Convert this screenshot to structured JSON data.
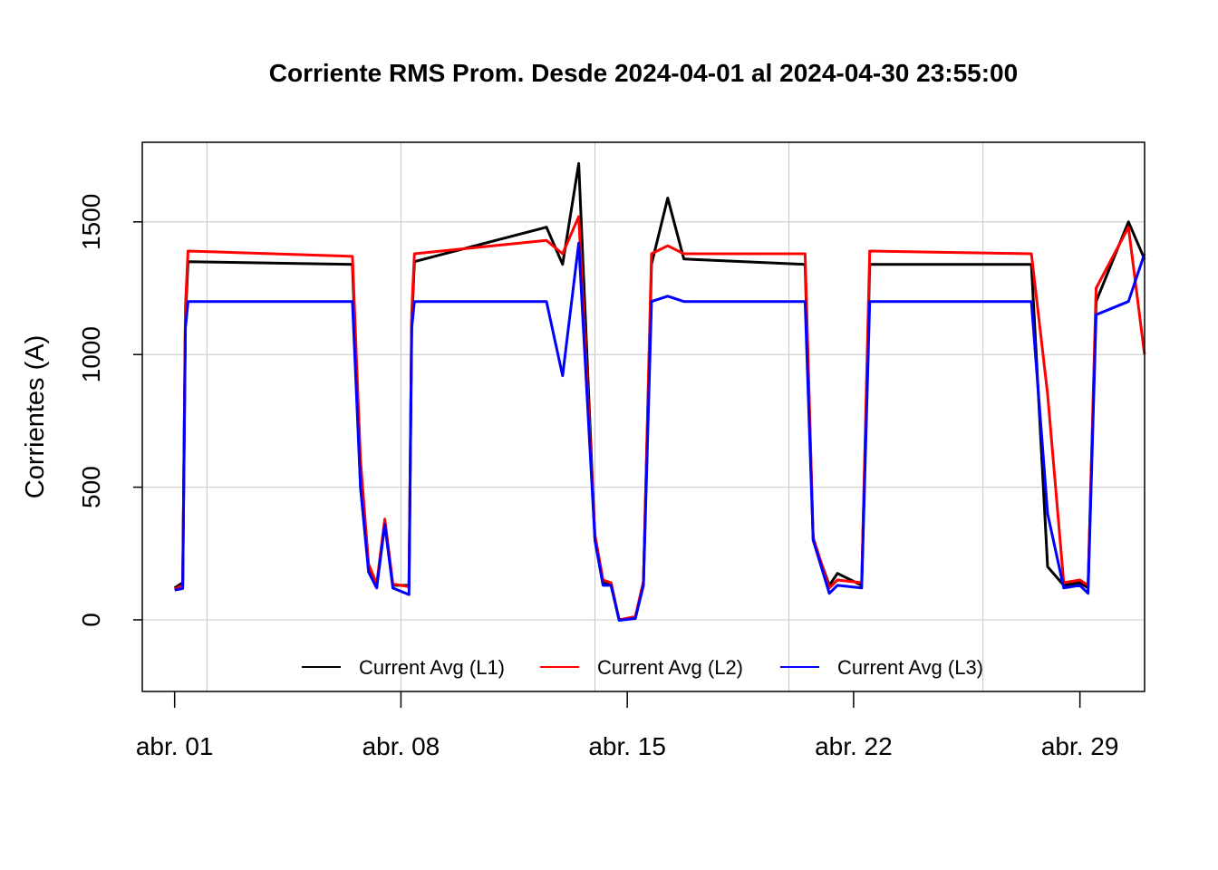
{
  "chart_data": {
    "type": "line",
    "title": "Corriente RMS Prom. Desde  2024-04-01  al  2024-04-30 23:55:00",
    "xlabel": "",
    "ylabel": "Corrientes (A)",
    "x_range": [
      "2024-03-31T00:00:00",
      "2024-05-01T00:00:00"
    ],
    "ylim": [
      -270,
      1800
    ],
    "y_ticks": [
      0,
      500,
      1000,
      1500
    ],
    "x_ticks": [
      {
        "date": "2024-04-01",
        "label": "abr. 01"
      },
      {
        "date": "2024-04-08",
        "label": "abr. 08"
      },
      {
        "date": "2024-04-15",
        "label": "abr. 15"
      },
      {
        "date": "2024-04-22",
        "label": "abr. 22"
      },
      {
        "date": "2024-04-29",
        "label": "abr. 29"
      }
    ],
    "x_grid": [
      "2024-04-02",
      "2024-04-08",
      "2024-04-14",
      "2024-04-20",
      "2024-04-26"
    ],
    "grid": true,
    "legend_position": "bottom",
    "series": [
      {
        "name": "Current Avg (L1)",
        "color": "#000000",
        "points": [
          [
            "2024-04-01T00:00:00",
            120
          ],
          [
            "2024-04-01T06:00:00",
            140
          ],
          [
            "2024-04-01T08:00:00",
            1140
          ],
          [
            "2024-04-01T10:00:00",
            1350
          ],
          [
            "2024-04-06T12:00:00",
            1340
          ],
          [
            "2024-04-06T18:00:00",
            500
          ],
          [
            "2024-04-07T00:00:00",
            200
          ],
          [
            "2024-04-07T06:00:00",
            130
          ],
          [
            "2024-04-07T12:00:00",
            370
          ],
          [
            "2024-04-07T18:00:00",
            130
          ],
          [
            "2024-04-08T06:00:00",
            130
          ],
          [
            "2024-04-08T08:00:00",
            1120
          ],
          [
            "2024-04-08T10:00:00",
            1350
          ],
          [
            "2024-04-12T12:00:00",
            1480
          ],
          [
            "2024-04-13T00:00:00",
            1340
          ],
          [
            "2024-04-13T12:00:00",
            1720
          ],
          [
            "2024-04-14T00:00:00",
            300
          ],
          [
            "2024-04-14T06:00:00",
            140
          ],
          [
            "2024-04-14T12:00:00",
            130
          ],
          [
            "2024-04-14T18:00:00",
            0
          ],
          [
            "2024-04-15T06:00:00",
            10
          ],
          [
            "2024-04-15T12:00:00",
            140
          ],
          [
            "2024-04-15T18:00:00",
            1340
          ],
          [
            "2024-04-16T06:00:00",
            1590
          ],
          [
            "2024-04-16T18:00:00",
            1360
          ],
          [
            "2024-04-20T12:00:00",
            1340
          ],
          [
            "2024-04-20T18:00:00",
            300
          ],
          [
            "2024-04-21T06:00:00",
            130
          ],
          [
            "2024-04-21T12:00:00",
            175
          ],
          [
            "2024-04-22T06:00:00",
            130
          ],
          [
            "2024-04-22T12:00:00",
            1340
          ],
          [
            "2024-04-27T12:00:00",
            1340
          ],
          [
            "2024-04-28T00:00:00",
            200
          ],
          [
            "2024-04-28T12:00:00",
            130
          ],
          [
            "2024-04-29T00:00:00",
            140
          ],
          [
            "2024-04-29T06:00:00",
            120
          ],
          [
            "2024-04-29T12:00:00",
            1200
          ],
          [
            "2024-04-30T12:00:00",
            1500
          ],
          [
            "2024-04-30T23:55:00",
            1360
          ]
        ]
      },
      {
        "name": "Current Avg (L2)",
        "color": "#ff0000",
        "points": [
          [
            "2024-04-01T00:00:00",
            115
          ],
          [
            "2024-04-01T06:00:00",
            130
          ],
          [
            "2024-04-01T08:00:00",
            1180
          ],
          [
            "2024-04-01T10:00:00",
            1390
          ],
          [
            "2024-04-06T12:00:00",
            1370
          ],
          [
            "2024-04-06T18:00:00",
            600
          ],
          [
            "2024-04-07T00:00:00",
            210
          ],
          [
            "2024-04-07T06:00:00",
            135
          ],
          [
            "2024-04-07T12:00:00",
            380
          ],
          [
            "2024-04-07T18:00:00",
            135
          ],
          [
            "2024-04-08T06:00:00",
            125
          ],
          [
            "2024-04-08T08:00:00",
            1160
          ],
          [
            "2024-04-08T10:00:00",
            1380
          ],
          [
            "2024-04-12T12:00:00",
            1430
          ],
          [
            "2024-04-13T00:00:00",
            1380
          ],
          [
            "2024-04-13T12:00:00",
            1520
          ],
          [
            "2024-04-14T00:00:00",
            320
          ],
          [
            "2024-04-14T06:00:00",
            150
          ],
          [
            "2024-04-14T12:00:00",
            140
          ],
          [
            "2024-04-14T18:00:00",
            0
          ],
          [
            "2024-04-15T06:00:00",
            12
          ],
          [
            "2024-04-15T12:00:00",
            145
          ],
          [
            "2024-04-15T18:00:00",
            1380
          ],
          [
            "2024-04-16T06:00:00",
            1410
          ],
          [
            "2024-04-16T18:00:00",
            1380
          ],
          [
            "2024-04-20T12:00:00",
            1380
          ],
          [
            "2024-04-20T18:00:00",
            310
          ],
          [
            "2024-04-21T06:00:00",
            120
          ],
          [
            "2024-04-21T12:00:00",
            150
          ],
          [
            "2024-04-22T06:00:00",
            140
          ],
          [
            "2024-04-22T12:00:00",
            1390
          ],
          [
            "2024-04-27T12:00:00",
            1380
          ],
          [
            "2024-04-28T00:00:00",
            850
          ],
          [
            "2024-04-28T12:00:00",
            140
          ],
          [
            "2024-04-29T00:00:00",
            150
          ],
          [
            "2024-04-29T06:00:00",
            130
          ],
          [
            "2024-04-29T12:00:00",
            1250
          ],
          [
            "2024-04-30T12:00:00",
            1480
          ],
          [
            "2024-04-30T23:55:00",
            1000
          ]
        ]
      },
      {
        "name": "Current Avg (L3)",
        "color": "#0000ff",
        "points": [
          [
            "2024-04-01T00:00:00",
            112
          ],
          [
            "2024-04-01T06:00:00",
            118
          ],
          [
            "2024-04-01T08:00:00",
            1100
          ],
          [
            "2024-04-01T10:00:00",
            1200
          ],
          [
            "2024-04-06T12:00:00",
            1200
          ],
          [
            "2024-04-06T18:00:00",
            500
          ],
          [
            "2024-04-07T00:00:00",
            180
          ],
          [
            "2024-04-07T06:00:00",
            120
          ],
          [
            "2024-04-07T12:00:00",
            360
          ],
          [
            "2024-04-07T18:00:00",
            120
          ],
          [
            "2024-04-08T06:00:00",
            95
          ],
          [
            "2024-04-08T08:00:00",
            1100
          ],
          [
            "2024-04-08T10:00:00",
            1200
          ],
          [
            "2024-04-12T12:00:00",
            1200
          ],
          [
            "2024-04-13T00:00:00",
            920
          ],
          [
            "2024-04-13T12:00:00",
            1420
          ],
          [
            "2024-04-14T00:00:00",
            300
          ],
          [
            "2024-04-14T06:00:00",
            130
          ],
          [
            "2024-04-14T12:00:00",
            130
          ],
          [
            "2024-04-14T18:00:00",
            -2
          ],
          [
            "2024-04-15T06:00:00",
            5
          ],
          [
            "2024-04-15T12:00:00",
            130
          ],
          [
            "2024-04-15T18:00:00",
            1200
          ],
          [
            "2024-04-16T06:00:00",
            1220
          ],
          [
            "2024-04-16T18:00:00",
            1200
          ],
          [
            "2024-04-20T12:00:00",
            1200
          ],
          [
            "2024-04-20T18:00:00",
            300
          ],
          [
            "2024-04-21T06:00:00",
            100
          ],
          [
            "2024-04-21T12:00:00",
            130
          ],
          [
            "2024-04-22T06:00:00",
            120
          ],
          [
            "2024-04-22T12:00:00",
            1200
          ],
          [
            "2024-04-27T12:00:00",
            1200
          ],
          [
            "2024-04-28T00:00:00",
            400
          ],
          [
            "2024-04-28T12:00:00",
            120
          ],
          [
            "2024-04-29T00:00:00",
            130
          ],
          [
            "2024-04-29T06:00:00",
            100
          ],
          [
            "2024-04-29T12:00:00",
            1150
          ],
          [
            "2024-04-30T12:00:00",
            1200
          ],
          [
            "2024-04-30T23:55:00",
            1380
          ]
        ]
      }
    ]
  }
}
